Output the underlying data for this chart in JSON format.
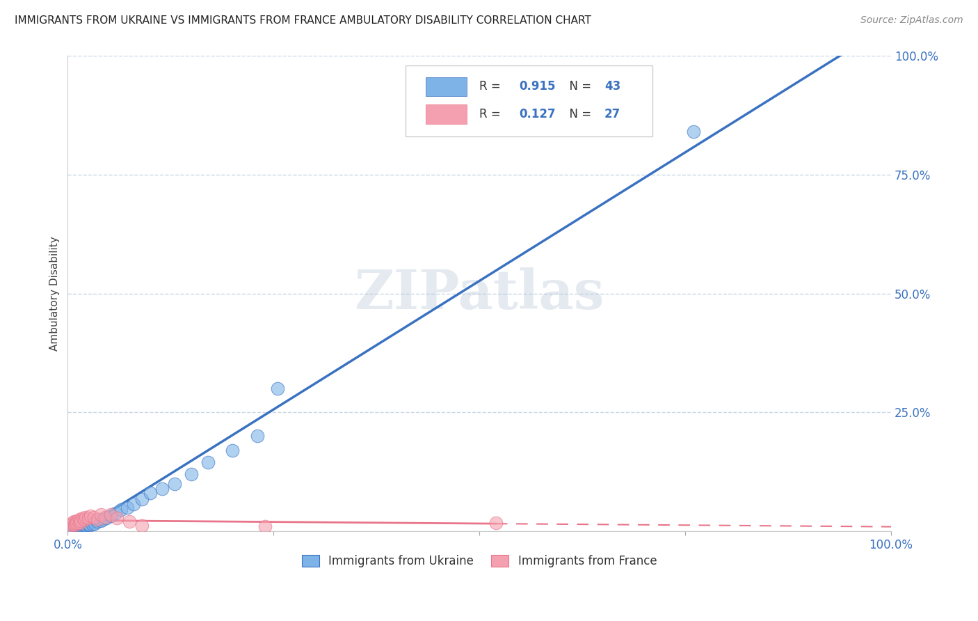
{
  "title": "IMMIGRANTS FROM UKRAINE VS IMMIGRANTS FROM FRANCE AMBULATORY DISABILITY CORRELATION CHART",
  "source": "Source: ZipAtlas.com",
  "ylabel": "Ambulatory Disability",
  "watermark": "ZIPatlas",
  "ukraine_R": 0.915,
  "ukraine_N": 43,
  "france_R": 0.127,
  "france_N": 27,
  "ukraine_scatter_color": "#7EB3E8",
  "france_scatter_color": "#F4A0B0",
  "ukraine_line_color": "#3A72C0",
  "france_line_color": "#E8758A",
  "legend_label_ukraine": "Immigrants from Ukraine",
  "legend_label_france": "Immigrants from France",
  "legend_text_color": "#3A72C0",
  "axis_tick_color": "#3A72C0",
  "title_color": "#222222",
  "source_color": "#888888",
  "grid_color": "#C8D8E8",
  "background_color": "#FFFFFF",
  "ukraine_scatter_x": [
    0.003,
    0.005,
    0.006,
    0.007,
    0.008,
    0.009,
    0.01,
    0.011,
    0.012,
    0.013,
    0.014,
    0.015,
    0.016,
    0.017,
    0.018,
    0.019,
    0.02,
    0.021,
    0.022,
    0.023,
    0.025,
    0.027,
    0.03,
    0.033,
    0.036,
    0.04,
    0.043,
    0.047,
    0.052,
    0.058,
    0.065,
    0.072,
    0.08,
    0.09,
    0.1,
    0.115,
    0.13,
    0.15,
    0.17,
    0.2,
    0.23,
    0.255,
    0.76
  ],
  "ukraine_scatter_y": [
    0.01,
    0.012,
    0.01,
    0.013,
    0.01,
    0.012,
    0.013,
    0.01,
    0.012,
    0.01,
    0.011,
    0.01,
    0.012,
    0.01,
    0.013,
    0.011,
    0.012,
    0.013,
    0.012,
    0.014,
    0.015,
    0.013,
    0.015,
    0.017,
    0.02,
    0.022,
    0.025,
    0.028,
    0.032,
    0.038,
    0.045,
    0.05,
    0.058,
    0.068,
    0.08,
    0.09,
    0.1,
    0.12,
    0.145,
    0.17,
    0.2,
    0.3,
    0.84
  ],
  "france_scatter_x": [
    0.003,
    0.005,
    0.006,
    0.007,
    0.008,
    0.009,
    0.01,
    0.011,
    0.012,
    0.014,
    0.015,
    0.016,
    0.018,
    0.02,
    0.022,
    0.025,
    0.028,
    0.032,
    0.036,
    0.04,
    0.045,
    0.052,
    0.06,
    0.075,
    0.09,
    0.24,
    0.52
  ],
  "france_scatter_y": [
    0.012,
    0.015,
    0.018,
    0.02,
    0.013,
    0.016,
    0.02,
    0.018,
    0.022,
    0.025,
    0.018,
    0.022,
    0.028,
    0.025,
    0.03,
    0.028,
    0.032,
    0.03,
    0.025,
    0.035,
    0.03,
    0.035,
    0.028,
    0.02,
    0.012,
    0.01,
    0.018
  ],
  "ukraine_line_x0": 0.0,
  "ukraine_line_y0": 0.0,
  "ukraine_line_x1": 1.0,
  "ukraine_line_y1": 1.0,
  "france_line_x0": 0.0,
  "france_line_x1": 1.0,
  "xlim": [
    0.0,
    1.0
  ],
  "ylim": [
    0.0,
    1.0
  ],
  "ytick_vals": [
    0.0,
    0.25,
    0.5,
    0.75,
    1.0
  ],
  "ytick_labels": [
    "",
    "25.0%",
    "50.0%",
    "75.0%",
    "100.0%"
  ],
  "xtick_vals": [
    0.0,
    0.25,
    0.5,
    0.75,
    1.0
  ],
  "xtick_labels": [
    "0.0%",
    "",
    "",
    "",
    "100.0%"
  ]
}
